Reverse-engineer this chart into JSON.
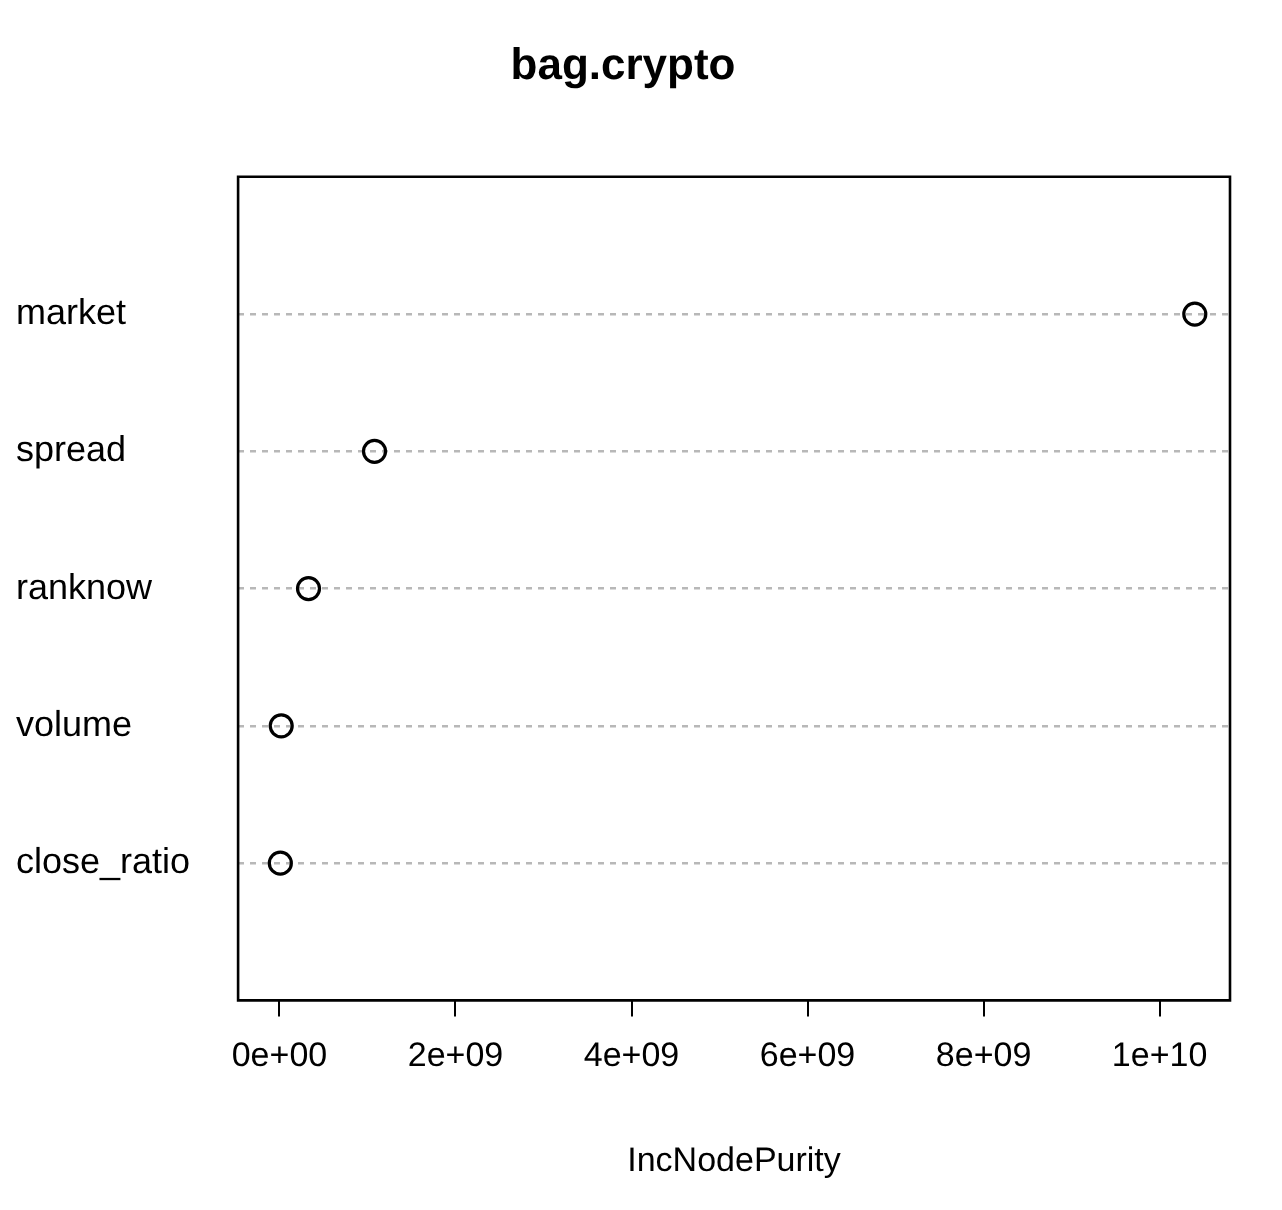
{
  "chart_data": {
    "type": "scatter",
    "title": "bag.crypto",
    "xlabel": "IncNodePurity",
    "categories": [
      "market",
      "spread",
      "ranknow",
      "volume",
      "close_ratio"
    ],
    "values": [
      10400000000,
      1080000000,
      330000000,
      20000000,
      10000000
    ],
    "color": "#000000",
    "orientation": "horizontal",
    "marker": "circle",
    "grid": "y",
    "line_style": "dotted",
    "legend": false,
    "xlim": [
      -470000000,
      10800000000
    ],
    "xticks": [
      {
        "value": 0,
        "label": "0e+00"
      },
      {
        "value": 2000000000,
        "label": "2e+09"
      },
      {
        "value": 4000000000,
        "label": "4e+09"
      },
      {
        "value": 6000000000,
        "label": "6e+09"
      },
      {
        "value": 8000000000,
        "label": "8e+09"
      },
      {
        "value": 10000000000,
        "label": "1e+10"
      }
    ]
  }
}
